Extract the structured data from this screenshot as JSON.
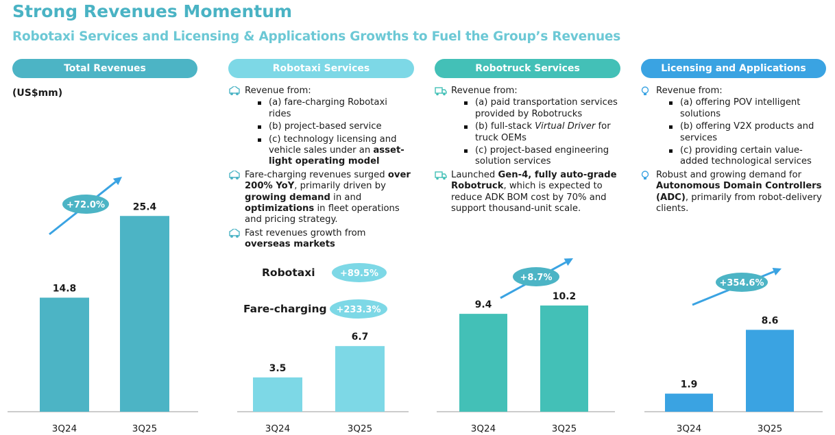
{
  "header": {
    "title": "Strong Revenues Momentum",
    "subtitle": "Robotaxi Services and Licensing & Applications Growths to Fuel the Group’s Revenues"
  },
  "colors": {
    "title": "#4ab3c4",
    "subtitle": "#6cc8d5",
    "total": "#4cb4c5",
    "robotaxi": "#7dd8e6",
    "robotruck": "#43c0b7",
    "licensing": "#3aa3e2"
  },
  "icons": [
    "robotaxi-car-icon",
    "robotruck-icon",
    "lightbulb-icon"
  ],
  "panels": {
    "robotaxi": {
      "bullets": [
        {
          "pre": "Revenue from:",
          "items": [
            {
              "t1": "(a) fare-charging Robotaxi rides"
            },
            {
              "t1": "(b) project-based service"
            },
            {
              "t1": "(c) technology licensing and vehicle sales under an ",
              "b1": "asset-light operating model"
            }
          ]
        },
        {
          "pre": "Fare-charging revenues surged ",
          "b1": "over 200% YoY",
          "t1": ", primarily driven by ",
          "b2": "growing demand",
          "t2": " in and ",
          "b3": "optimizations",
          "t3": " in fleet operations and pricing strategy."
        },
        {
          "pre": "Fast revenues growth from ",
          "b1": "overseas markets"
        }
      ]
    },
    "robotruck": {
      "bullets": [
        {
          "pre": "Revenue from:",
          "items": [
            {
              "t1": "(a) paid transportation services provided by Robotrucks"
            },
            {
              "t1": "(b) full-stack ",
              "i1": "Virtual Driver",
              "t2": " for truck OEMs"
            },
            {
              "t1": "(c) project-based engineering solution services"
            }
          ]
        },
        {
          "pre": "Launched ",
          "b1": "Gen-4, fully auto-grade Robotruck",
          "t1": ", which is expected to reduce ADK BOM cost by 70% and support thousand-unit scale."
        }
      ]
    },
    "licensing": {
      "bullets": [
        {
          "pre": "Revenue from:",
          "items": [
            {
              "t1": "(a) offering POV intelligent solutions"
            },
            {
              "t1": "(b) offering V2X products and services"
            },
            {
              "t1": "(c) providing certain value-added technological services"
            }
          ]
        },
        {
          "pre": "Robust and growing demand for ",
          "b1": "Autonomous Domain Controllers (ADC)",
          "t1": ", primarily from robot-delivery clients."
        }
      ]
    }
  },
  "chart_data": [
    {
      "type": "bar",
      "title": "Total Revenues",
      "ylabel": "(US$mm)",
      "categories": [
        "3Q24",
        "3Q25"
      ],
      "values": [
        14.8,
        25.4
      ],
      "labels": [
        "14.8",
        "25.4"
      ],
      "growth": "+72.0%",
      "color": "#4cb4c5"
    },
    {
      "type": "bar",
      "title": "Robotaxi Services",
      "categories": [
        "3Q24",
        "3Q25"
      ],
      "values": [
        3.5,
        6.7
      ],
      "labels": [
        "3.5",
        "6.7"
      ],
      "color": "#7dd8e6",
      "growths": [
        {
          "name": "Robotaxi",
          "value": "+89.5%"
        },
        {
          "name": "Fare-charging",
          "value": "+233.3%"
        }
      ]
    },
    {
      "type": "bar",
      "title": "Robotruck Services",
      "categories": [
        "3Q24",
        "3Q25"
      ],
      "values": [
        9.4,
        10.2
      ],
      "labels": [
        "9.4",
        "10.2"
      ],
      "growth": "+8.7%",
      "color": "#43c0b7"
    },
    {
      "type": "bar",
      "title": "Licensing and Applications",
      "categories": [
        "3Q24",
        "3Q25"
      ],
      "values": [
        1.9,
        8.6
      ],
      "labels": [
        "1.9",
        "8.6"
      ],
      "growth": "+354.6%",
      "color": "#3aa3e2"
    }
  ]
}
